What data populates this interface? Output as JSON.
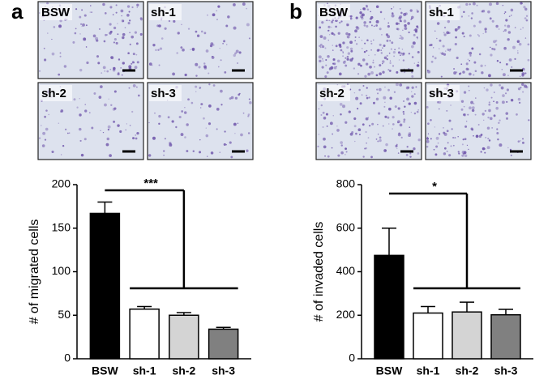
{
  "panels": [
    "a",
    "b"
  ],
  "images": [
    [
      "BSW",
      "sh-1",
      "sh-2",
      "sh-3"
    ],
    [
      "BSW",
      "sh-1",
      "sh-2",
      "sh-3"
    ]
  ],
  "chart_data": [
    {
      "type": "bar",
      "ylabel": "# of migrated cells",
      "annotation": "***",
      "categories": [
        "BSW",
        "sh-1",
        "sh-2",
        "sh-3"
      ],
      "values": [
        167,
        57,
        50,
        34
      ],
      "errors": [
        13,
        3,
        3,
        2
      ],
      "colors": [
        "#000000",
        "#ffffff",
        "#d4d4d4",
        "#808080"
      ],
      "ylim": [
        0,
        200
      ],
      "yticks": [
        0,
        50,
        100,
        150,
        200
      ]
    },
    {
      "type": "bar",
      "ylabel": "# of invaded cells",
      "annotation": "*",
      "categories": [
        "BSW",
        "sh-1",
        "sh-2",
        "sh-3"
      ],
      "values": [
        475,
        210,
        215,
        202
      ],
      "errors": [
        125,
        30,
        45,
        25
      ],
      "colors": [
        "#000000",
        "#ffffff",
        "#d4d4d4",
        "#808080"
      ],
      "ylim": [
        0,
        800
      ],
      "yticks": [
        0,
        200,
        400,
        600,
        800
      ]
    }
  ]
}
